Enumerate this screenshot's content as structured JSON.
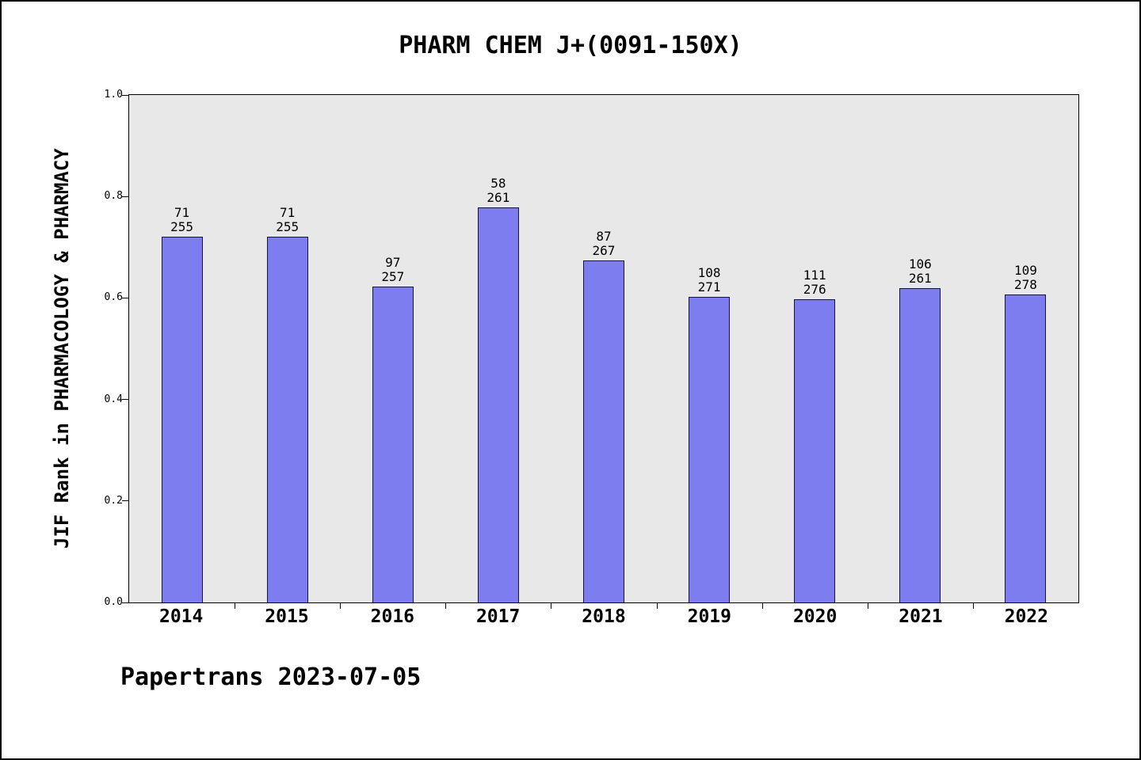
{
  "footer": "Papertrans 2023-07-05",
  "chart_data": {
    "type": "bar",
    "title": "PHARM CHEM J+(0091-150X)",
    "xlabel": "",
    "ylabel": "JIF Rank in PHARMACOLOGY & PHARMACY",
    "categories": [
      "2014",
      "2015",
      "2016",
      "2017",
      "2018",
      "2019",
      "2020",
      "2021",
      "2022"
    ],
    "values": [
      0.721,
      0.721,
      0.623,
      0.778,
      0.674,
      0.602,
      0.598,
      0.619,
      0.607
    ],
    "bar_labels": [
      [
        "71",
        "255"
      ],
      [
        "71",
        "255"
      ],
      [
        "97",
        "257"
      ],
      [
        "58",
        "261"
      ],
      [
        "87",
        "267"
      ],
      [
        "108",
        "271"
      ],
      [
        "111",
        "276"
      ],
      [
        "106",
        "261"
      ],
      [
        "109",
        "278"
      ]
    ],
    "ylim": [
      0.0,
      1.0
    ],
    "yticks": [
      "0.0",
      "0.2",
      "0.4",
      "0.6",
      "0.8",
      "1.0"
    ],
    "grid": false,
    "legend": "none",
    "bar_color": "#7d7df0",
    "bar_border_color": "#14143c",
    "plot_background": "#e8e8e8",
    "text_color": "#000000"
  }
}
